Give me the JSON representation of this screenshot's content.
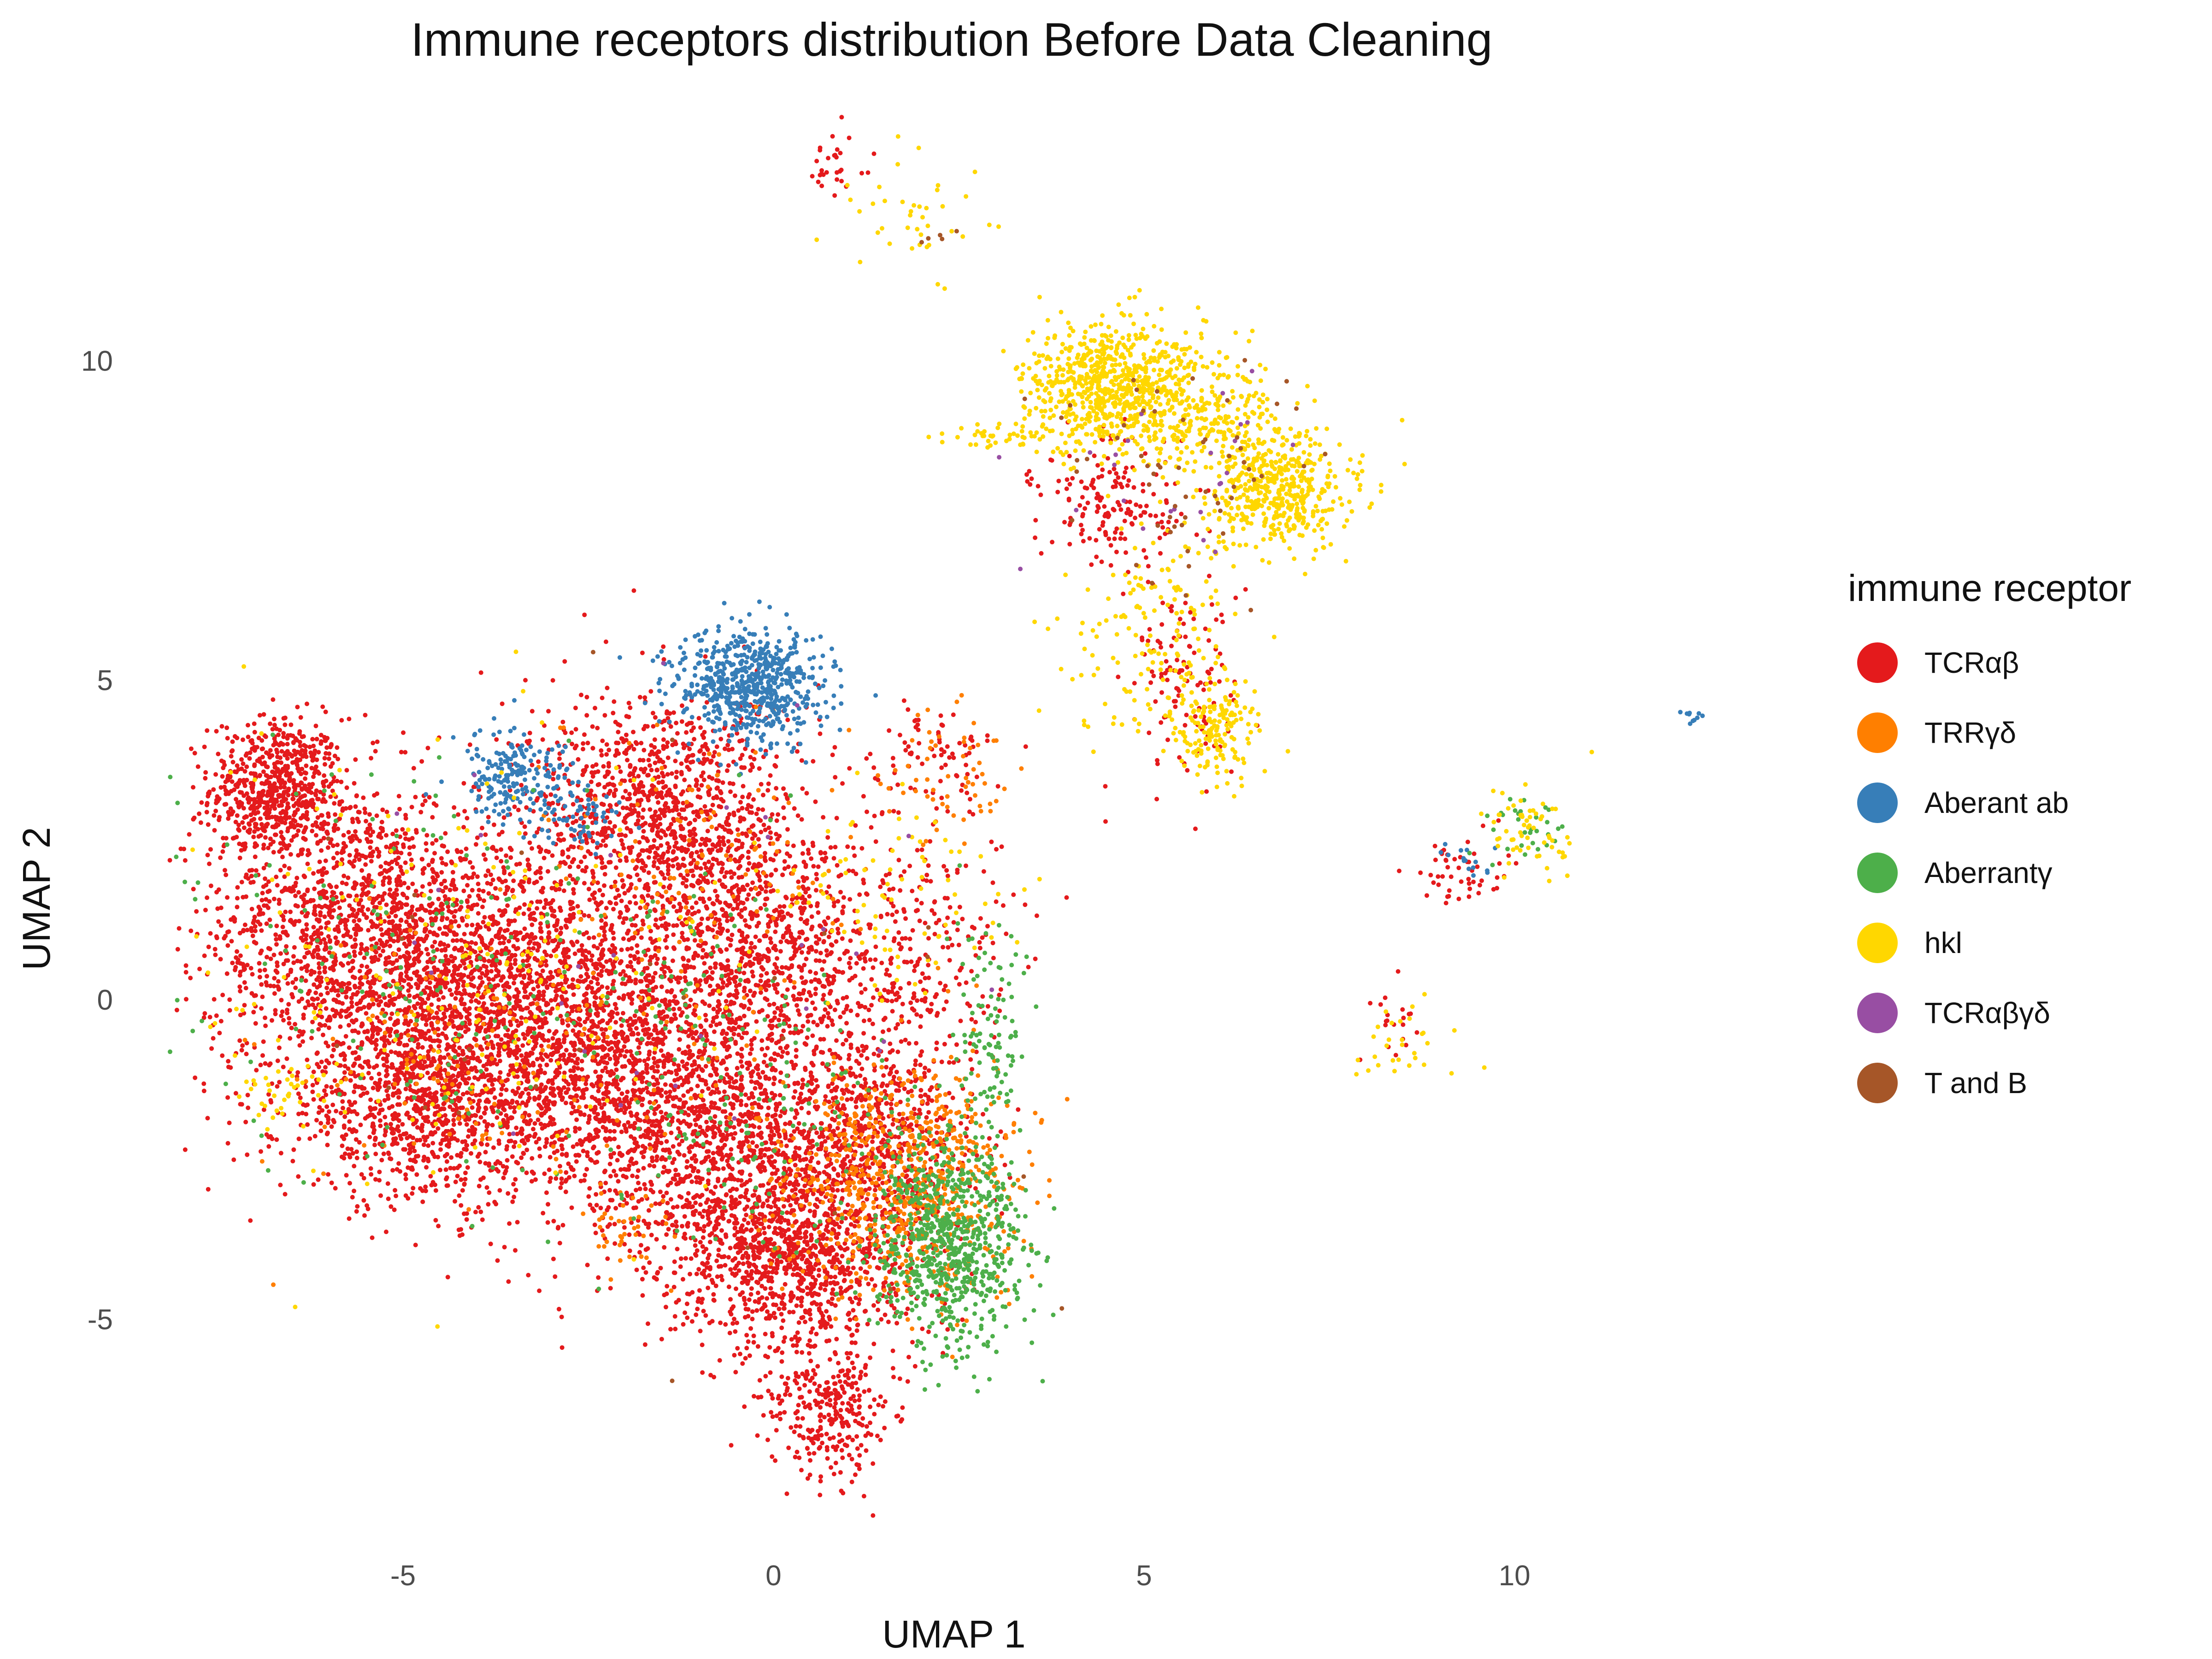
{
  "chart_data": {
    "type": "scatter",
    "title": "Immune receptors distribution Before Data Cleaning",
    "xlabel": "UMAP 1",
    "ylabel": "UMAP 2",
    "xlim": [
      -8.2,
      14.5
    ],
    "ylim": [
      -8.3,
      14.2
    ],
    "x_ticks": [
      -5,
      0,
      5,
      10
    ],
    "y_ticks": [
      -5,
      0,
      5,
      10
    ],
    "grid": false,
    "legend_title": "immune receptor",
    "legend_position": "right",
    "series": [
      {
        "name": "TCRαβ",
        "color": "#E41A1C"
      },
      {
        "name": "TRRγδ",
        "color": "#FF7F00"
      },
      {
        "name": "Aberant ab",
        "color": "#377EB8"
      },
      {
        "name": "Aberrantγ",
        "color": "#4DAF4A"
      },
      {
        "name": "hkl",
        "color": "#FFD700"
      },
      {
        "name": "TCRαβγδ",
        "color": "#984EA3"
      },
      {
        "name": "T and B",
        "color": "#A65628"
      }
    ],
    "clusters": [
      {
        "series": "TCRαβ",
        "cx": -6.7,
        "cy": 3.3,
        "sx": 0.45,
        "sy": 0.55,
        "n": 650
      },
      {
        "series": "TCRαβ",
        "cx": -5.6,
        "cy": 1.0,
        "sx": 1.0,
        "sy": 1.2,
        "n": 1600
      },
      {
        "series": "TCRαβ",
        "cx": -4.6,
        "cy": -1.6,
        "sx": 1.0,
        "sy": 0.8,
        "n": 1100
      },
      {
        "series": "TCRαβ",
        "cx": -3.4,
        "cy": 0.3,
        "sx": 1.0,
        "sy": 1.1,
        "n": 1300
      },
      {
        "series": "TCRαβ",
        "cx": -2.3,
        "cy": -1.2,
        "sx": 0.8,
        "sy": 1.2,
        "n": 900
      },
      {
        "series": "TCRαβ",
        "cx": -1.5,
        "cy": 3.0,
        "sx": 0.9,
        "sy": 0.9,
        "n": 1000
      },
      {
        "series": "TCRαβ",
        "cx": -0.2,
        "cy": 1.0,
        "sx": 0.9,
        "sy": 1.0,
        "n": 900
      },
      {
        "series": "TCRαβ",
        "cx": -0.4,
        "cy": -2.0,
        "sx": 1.0,
        "sy": 1.2,
        "n": 1400
      },
      {
        "series": "TCRαβ",
        "cx": 0.3,
        "cy": -4.0,
        "sx": 0.8,
        "sy": 0.8,
        "n": 1000
      },
      {
        "series": "TCRαβ",
        "cx": 0.8,
        "cy": -6.4,
        "sx": 0.4,
        "sy": 0.6,
        "n": 300
      },
      {
        "series": "TCRαβ",
        "cx": 1.6,
        "cy": -2.3,
        "sx": 0.6,
        "sy": 0.9,
        "n": 500
      },
      {
        "series": "TCRαβ",
        "cx": 2.0,
        "cy": 0.7,
        "sx": 0.7,
        "sy": 0.8,
        "n": 220
      },
      {
        "series": "TCRαβ",
        "cx": 2.2,
        "cy": 3.8,
        "sx": 0.4,
        "sy": 0.4,
        "n": 80
      },
      {
        "series": "TCRαβ",
        "cx": 4.6,
        "cy": 7.7,
        "sx": 0.5,
        "sy": 0.5,
        "n": 170
      },
      {
        "series": "TCRαβ",
        "cx": 5.5,
        "cy": 5.0,
        "sx": 0.4,
        "sy": 0.8,
        "n": 120
      },
      {
        "series": "TCRαβ",
        "cx": 0.8,
        "cy": 13.0,
        "sx": 0.2,
        "sy": 0.3,
        "n": 30
      },
      {
        "series": "TCRαβ",
        "cx": 9.3,
        "cy": 2.0,
        "sx": 0.3,
        "sy": 0.3,
        "n": 50
      },
      {
        "series": "TCRαβ",
        "cx": 8.3,
        "cy": -0.3,
        "sx": 0.2,
        "sy": 0.3,
        "n": 20
      },
      {
        "series": "TRRγδ",
        "cx": 1.8,
        "cy": -2.8,
        "sx": 0.8,
        "sy": 0.9,
        "n": 700
      },
      {
        "series": "TRRγδ",
        "cx": -2.0,
        "cy": -3.5,
        "sx": 0.3,
        "sy": 0.4,
        "n": 40
      },
      {
        "series": "TRRγδ",
        "cx": -4.0,
        "cy": -1.0,
        "sx": 1.5,
        "sy": 1.2,
        "n": 150
      },
      {
        "series": "TRRγδ",
        "cx": 2.3,
        "cy": 3.5,
        "sx": 0.5,
        "sy": 0.5,
        "n": 60
      },
      {
        "series": "TRRγδ",
        "cx": -1.0,
        "cy": 2.0,
        "sx": 1.2,
        "sy": 1.2,
        "n": 120
      },
      {
        "series": "Aberant ab",
        "cx": -0.3,
        "cy": 4.9,
        "sx": 0.5,
        "sy": 0.45,
        "n": 650
      },
      {
        "series": "Aberant ab",
        "cx": -3.5,
        "cy": 3.5,
        "sx": 0.4,
        "sy": 0.35,
        "n": 200
      },
      {
        "series": "Aberant ab",
        "cx": -2.6,
        "cy": 2.9,
        "sx": 0.3,
        "sy": 0.3,
        "n": 60
      },
      {
        "series": "Aberant ab",
        "cx": 12.4,
        "cy": 4.4,
        "sx": 0.1,
        "sy": 0.05,
        "n": 10
      },
      {
        "series": "Aberant ab",
        "cx": 9.3,
        "cy": 2.3,
        "sx": 0.2,
        "sy": 0.2,
        "n": 15
      },
      {
        "series": "Aberrantγ",
        "cx": 2.4,
        "cy": -3.8,
        "sx": 0.5,
        "sy": 0.8,
        "n": 750
      },
      {
        "series": "Aberrantγ",
        "cx": 2.9,
        "cy": -0.5,
        "sx": 0.3,
        "sy": 0.8,
        "n": 100
      },
      {
        "series": "Aberrantγ",
        "cx": -4.5,
        "cy": 0.5,
        "sx": 1.8,
        "sy": 1.6,
        "n": 200
      },
      {
        "series": "Aberrantγ",
        "cx": -0.5,
        "cy": -1.5,
        "sx": 1.2,
        "sy": 1.5,
        "n": 150
      },
      {
        "series": "Aberrantγ",
        "cx": 10.2,
        "cy": 2.6,
        "sx": 0.3,
        "sy": 0.3,
        "n": 30
      },
      {
        "series": "hkl",
        "cx": 4.6,
        "cy": 9.6,
        "sx": 0.6,
        "sy": 0.5,
        "n": 750
      },
      {
        "series": "hkl",
        "cx": 6.8,
        "cy": 8.0,
        "sx": 0.5,
        "sy": 0.45,
        "n": 500
      },
      {
        "series": "hkl",
        "cx": 5.8,
        "cy": 9.2,
        "sx": 0.5,
        "sy": 0.5,
        "n": 200
      },
      {
        "series": "hkl",
        "cx": 6.0,
        "cy": 4.2,
        "sx": 0.3,
        "sy": 0.4,
        "n": 140
      },
      {
        "series": "hkl",
        "cx": 5.2,
        "cy": 5.6,
        "sx": 0.6,
        "sy": 0.9,
        "n": 180
      },
      {
        "series": "hkl",
        "cx": 3.0,
        "cy": 8.8,
        "sx": 0.4,
        "sy": 0.1,
        "n": 40
      },
      {
        "series": "hkl",
        "cx": 1.9,
        "cy": 12.2,
        "sx": 0.5,
        "sy": 0.6,
        "n": 40
      },
      {
        "series": "hkl",
        "cx": 10.1,
        "cy": 2.6,
        "sx": 0.3,
        "sy": 0.4,
        "n": 60
      },
      {
        "series": "hkl",
        "cx": -6.6,
        "cy": -1.4,
        "sx": 0.3,
        "sy": 0.3,
        "n": 40
      },
      {
        "series": "hkl",
        "cx": 1.5,
        "cy": 1.5,
        "sx": 0.9,
        "sy": 0.9,
        "n": 80
      },
      {
        "series": "hkl",
        "cx": -4.0,
        "cy": 0.5,
        "sx": 2.0,
        "sy": 1.8,
        "n": 200
      },
      {
        "series": "hkl",
        "cx": 8.5,
        "cy": -0.6,
        "sx": 0.4,
        "sy": 0.3,
        "n": 30
      },
      {
        "series": "TCRαβγδ",
        "cx": 5.5,
        "cy": 8.5,
        "sx": 0.8,
        "sy": 0.8,
        "n": 25
      },
      {
        "series": "TCRαβγδ",
        "cx": -2.0,
        "cy": 1.0,
        "sx": 2.5,
        "sy": 2.0,
        "n": 30
      },
      {
        "series": "T and B",
        "cx": 5.3,
        "cy": 8.4,
        "sx": 0.9,
        "sy": 0.9,
        "n": 60
      },
      {
        "series": "T and B",
        "cx": 2.2,
        "cy": 11.9,
        "sx": 0.2,
        "sy": 0.1,
        "n": 5
      },
      {
        "series": "T and B",
        "cx": -2.0,
        "cy": 0.0,
        "sx": 3.0,
        "sy": 2.5,
        "n": 30
      }
    ]
  }
}
